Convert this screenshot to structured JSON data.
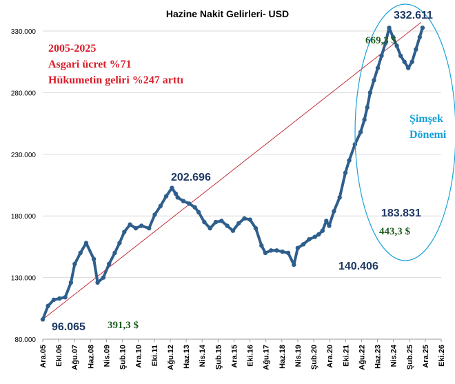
{
  "chart_data": {
    "type": "line",
    "title": "Hazine Nakit Gelirleri- USD",
    "xlabel": "",
    "ylabel": "",
    "ylim": [
      80000,
      330000
    ],
    "y_ticks": [
      "80.000",
      "130.000",
      "180.000",
      "230.000",
      "280.000",
      "330.000"
    ],
    "y_tick_values": [
      80000,
      130000,
      180000,
      230000,
      280000,
      330000
    ],
    "x_tick_labels": [
      "Ara.05",
      "Eki.06",
      "Ağu.07",
      "Haz.08",
      "Nis.09",
      "Şub.10",
      "Ara.10",
      "Eki.11",
      "Ağu.12",
      "Haz.13",
      "Nis.14",
      "Şub.15",
      "Ara.15",
      "Eki.16",
      "Ağu.17",
      "Haz.18",
      "Nis.19",
      "Şub.20",
      "Ara.20",
      "Eki.21",
      "Ağu.22",
      "Haz.23",
      "Nis.24",
      "Şub.25",
      "Ara.25",
      "Eki.26"
    ],
    "grid": true,
    "series": [
      {
        "color": "#2E5E8C",
        "x": [
          2005.92,
          2006.2,
          2006.5,
          2006.8,
          2007.1,
          2007.4,
          2007.6,
          2007.9,
          2008.2,
          2008.6,
          2008.8,
          2009.1,
          2009.4,
          2009.7,
          2009.95,
          2010.2,
          2010.5,
          2010.8,
          2011.1,
          2011.5,
          2011.8,
          2012.1,
          2012.4,
          2012.7,
          2012.9,
          2013.0,
          2013.3,
          2013.6,
          2013.9,
          2014.1,
          2014.4,
          2014.7,
          2015.0,
          2015.3,
          2015.6,
          2015.9,
          2016.2,
          2016.5,
          2016.8,
          2017.1,
          2017.4,
          2017.6,
          2017.9,
          2018.2,
          2018.5,
          2018.8,
          2019.1,
          2019.3,
          2019.6,
          2019.9,
          2020.2,
          2020.4,
          2020.6,
          2020.8,
          2020.95,
          2021.2,
          2021.5,
          2021.8,
          2022.0,
          2022.3,
          2022.6,
          2022.8,
          2022.95,
          2023.1,
          2023.3,
          2023.5,
          2023.7,
          2023.9,
          2024.1,
          2024.3,
          2024.5,
          2024.7,
          2024.9,
          2025.1,
          2025.3,
          2025.5,
          2025.7,
          2025.85
        ],
        "values": [
          96065,
          107000,
          112000,
          113000,
          114000,
          126000,
          141000,
          150000,
          158000,
          145000,
          126000,
          130000,
          141000,
          150000,
          158000,
          167000,
          173000,
          170000,
          172000,
          170000,
          181000,
          188000,
          196000,
          202696,
          198000,
          195000,
          192000,
          190000,
          187000,
          183000,
          175000,
          170000,
          175000,
          176000,
          172000,
          168000,
          174000,
          178000,
          177000,
          170000,
          156000,
          150000,
          152000,
          152000,
          151000,
          150000,
          140406,
          154000,
          157000,
          161000,
          163000,
          165000,
          168000,
          176000,
          172000,
          183831,
          195000,
          215000,
          225000,
          238000,
          248000,
          258000,
          268000,
          280000,
          290000,
          300000,
          310000,
          320000,
          332611,
          325000,
          318000,
          310000,
          305000,
          300000,
          305000,
          315000,
          325000,
          332611
        ],
        "x_values_note": ""
      }
    ],
    "annotations": {
      "peak_label": "332.611",
      "start_label": "96.065",
      "mid_peak_label": "202.696",
      "low_label": "140.406",
      "turn_label": "183.831",
      "start_wage": "391,3 $",
      "turn_wage": "443,3 $",
      "end_wage": "669,3 $",
      "period": "2005-2025",
      "wage_note": "Asgari ücret %71",
      "revenue_note": "Hükumetin geliri %247 arttı",
      "era_line1": "Şimşek",
      "era_line2": "Dönemi"
    },
    "colors": {
      "line": "#2E5E8C",
      "trend": "#C0303A",
      "note_red": "#D81E2A",
      "wage_green": "#1F5A1F",
      "era_blue": "#1AA0D8",
      "label_navy": "#1F3864"
    }
  }
}
